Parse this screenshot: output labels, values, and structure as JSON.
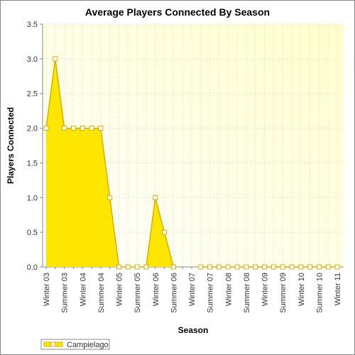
{
  "chart_data": {
    "type": "area",
    "title": "Average Players Connected By Season",
    "x_label": "Season",
    "y_label": "Players Connected",
    "categories": [
      "Winter 03",
      null,
      "Summer 03",
      null,
      "Winter 04",
      null,
      "Summer 04",
      null,
      "Winter 05",
      null,
      "Summer 05",
      null,
      "Winter 06",
      null,
      "Summer 06",
      null,
      "Winter 07",
      null,
      "Summer 07",
      null,
      "Winter 08",
      null,
      "Summer 08",
      null,
      "Winter 09",
      null,
      "Summer 09",
      null,
      "Winter 10",
      null,
      "Summer 10",
      null,
      "Winter 11"
    ],
    "series": [
      {
        "name": "Campielago",
        "color": "#ffe600",
        "line_color": "#d9ad00",
        "values": [
          2,
          3,
          2,
          2,
          2,
          2,
          2,
          1,
          0,
          0,
          0,
          0,
          1,
          0.5,
          0,
          null,
          null,
          0,
          0,
          0,
          0,
          0,
          0,
          0,
          0,
          0,
          0,
          0,
          0,
          0,
          0,
          0,
          0
        ]
      }
    ],
    "ylim": [
      0,
      3.5
    ],
    "yticks": [
      {
        "value": 0,
        "label": "0.0"
      },
      0.5,
      {
        "value": 1,
        "label": "1.0"
      },
      1.5,
      {
        "value": 2,
        "label": "2.0"
      },
      2.5,
      {
        "value": 3,
        "label": "3.0"
      },
      3.5
    ],
    "grid": true,
    "legend": "bottom-left"
  }
}
